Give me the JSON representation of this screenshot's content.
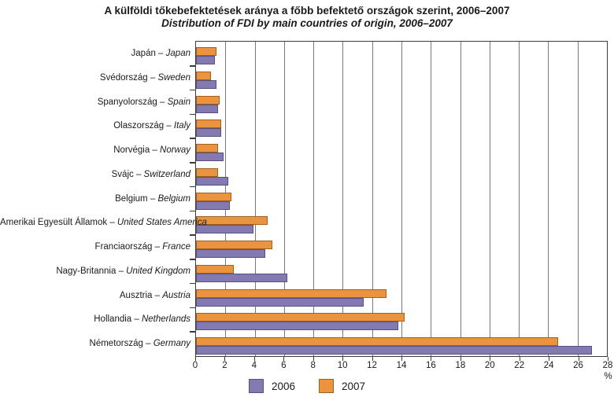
{
  "title": {
    "line1_hu": "A külföldi tőkebefektetések aránya a főbb befektető országok szerint, 2006–2007",
    "line2_en": "Distribution of FDI by main countries of origin, 2006–2007"
  },
  "colors": {
    "series_2006_fill": "#837AB2",
    "series_2006_border": "#56517E",
    "series_2007_fill": "#EB9440",
    "series_2007_border": "#A65E1F",
    "gridline": "#787878",
    "plot_border": "#3C3C3C",
    "text": "#1A1A1A",
    "background": "#FFFFFF"
  },
  "chart_data": {
    "type": "bar",
    "orientation": "horizontal",
    "title": "A külföldi tőkebefektetések aránya a főbb befektető országok szerint, 2006–2007",
    "subtitle": "Distribution of FDI by main countries of origin, 2006–2007",
    "categories_order": "top-to-bottom",
    "label_separator": " – ",
    "categories": [
      {
        "hu": "Japán",
        "en": "Japan"
      },
      {
        "hu": "Svédország",
        "en": "Sweden"
      },
      {
        "hu": "Spanyolország",
        "en": "Spain"
      },
      {
        "hu": "Olaszország",
        "en": "Italy"
      },
      {
        "hu": "Norvégia",
        "en": "Norway"
      },
      {
        "hu": "Svájc",
        "en": "Switzerland"
      },
      {
        "hu": "Belgium",
        "en": "Belgium"
      },
      {
        "hu": "Amerikai Egyesült Államok",
        "en": "United States America"
      },
      {
        "hu": "Franciaország",
        "en": "France"
      },
      {
        "hu": "Nagy-Britannia",
        "en": "United Kingdom"
      },
      {
        "hu": "Ausztria",
        "en": "Austria"
      },
      {
        "hu": "Hollandia",
        "en": "Netherlands"
      },
      {
        "hu": "Németország",
        "en": "Germany"
      }
    ],
    "series": [
      {
        "name": "2006",
        "values": [
          1.3,
          1.4,
          1.5,
          1.7,
          1.9,
          2.2,
          2.3,
          3.9,
          4.7,
          6.2,
          11.4,
          13.8,
          27.0
        ]
      },
      {
        "name": "2007",
        "values": [
          1.4,
          1.0,
          1.6,
          1.7,
          1.5,
          1.5,
          2.4,
          4.9,
          5.2,
          2.6,
          13.0,
          14.2,
          24.7
        ]
      }
    ],
    "bar_order_in_group": [
      "2007",
      "2006"
    ],
    "xlim": [
      0,
      28
    ],
    "xtick_step": 2,
    "xticks": [
      0,
      2,
      4,
      6,
      8,
      10,
      12,
      14,
      16,
      18,
      20,
      22,
      24,
      26,
      28
    ],
    "xlabel": "%",
    "grid": "vertical",
    "legend_position": "bottom-center",
    "legend": [
      "2006",
      "2007"
    ]
  }
}
